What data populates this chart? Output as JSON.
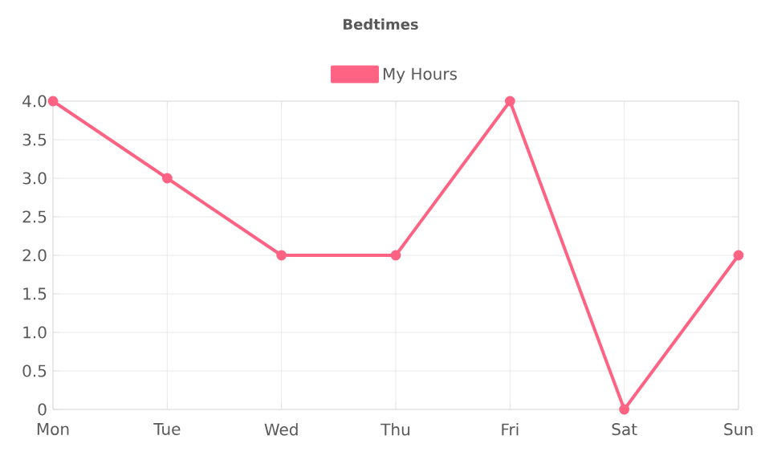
{
  "chart_data": {
    "type": "line",
    "title": "Bedtimes",
    "categories": [
      "Mon",
      "Tue",
      "Wed",
      "Thu",
      "Fri",
      "Sat",
      "Sun"
    ],
    "series": [
      {
        "name": "My Hours",
        "color": "#ff6384",
        "values": [
          4,
          3,
          2,
          2,
          4,
          0,
          2
        ]
      }
    ],
    "ylim": [
      0,
      4
    ],
    "yticks": [
      0,
      0.5,
      {
        "value": 1,
        "label": "1.0"
      },
      1.5,
      {
        "value": 2,
        "label": "2.0"
      },
      2.5,
      {
        "value": 3,
        "label": "3.0"
      },
      3.5,
      {
        "value": 4,
        "label": "4.0"
      }
    ],
    "grid": true,
    "legend": "top",
    "marker": "circle",
    "line_style": "solid"
  }
}
